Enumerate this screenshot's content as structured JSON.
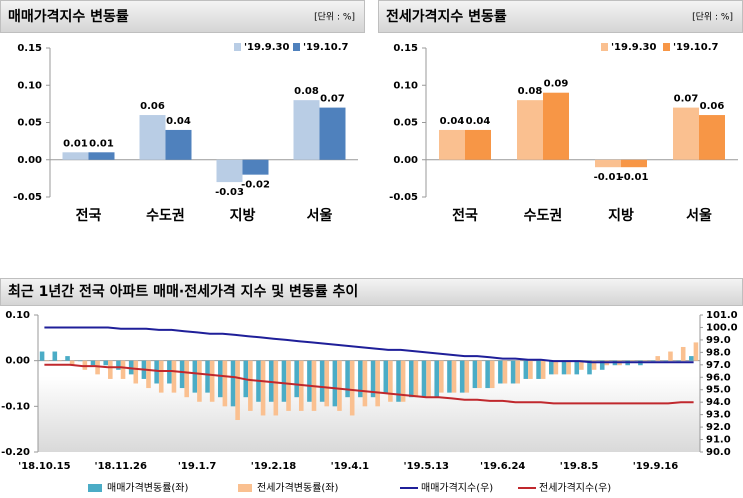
{
  "chart_data": [
    {
      "type": "bar",
      "title": "매매가격지수 변동률",
      "unit": "[단위 : %]",
      "categories": [
        "전국",
        "수도권",
        "지방",
        "서울"
      ],
      "series": [
        {
          "name": "'19.9.30",
          "color": "#b9cde5",
          "values": [
            0.01,
            0.06,
            -0.03,
            0.08
          ]
        },
        {
          "name": "'19.10.7",
          "color": "#4f81bd",
          "values": [
            0.01,
            0.04,
            -0.02,
            0.07
          ]
        }
      ],
      "ylim": [
        -0.05,
        0.15
      ],
      "yticks": [
        -0.05,
        {
          "value": 0,
          "label": "0.00"
        },
        0.05,
        {
          "value": 0.1,
          "label": "0.10"
        },
        0.15
      ],
      "legend": "top-right"
    },
    {
      "type": "bar",
      "title": "전세가격지수 변동률",
      "unit": "[단위 : %]",
      "categories": [
        "전국",
        "수도권",
        "지방",
        "서울"
      ],
      "series": [
        {
          "name": "'19.9.30",
          "color": "#fac090",
          "values": [
            0.04,
            0.08,
            -0.01,
            0.07
          ]
        },
        {
          "name": "'19.10.7",
          "color": "#f79646",
          "values": [
            0.04,
            0.09,
            -0.01,
            0.06
          ]
        }
      ],
      "ylim": [
        -0.05,
        0.15
      ],
      "yticks": [
        -0.05,
        {
          "value": 0,
          "label": "0.00"
        },
        0.05,
        {
          "value": 0.1,
          "label": "0.10"
        },
        0.15
      ],
      "legend": "top-right"
    },
    {
      "type": "combo",
      "title": "최근 1년간 전국 아파트 매매·전세가격 지수 및 변동률 추이",
      "categories": [
        "'18.10.15",
        null,
        null,
        null,
        null,
        null,
        "'18.11.26",
        null,
        null,
        null,
        null,
        null,
        "'19.1.7",
        null,
        null,
        null,
        null,
        null,
        "'19.2.18",
        null,
        null,
        null,
        null,
        null,
        "'19.4.1",
        null,
        null,
        null,
        null,
        null,
        "'19.5.13",
        null,
        null,
        null,
        null,
        null,
        "'19.6.24",
        null,
        null,
        null,
        null,
        null,
        "'19.8.5",
        null,
        null,
        null,
        null,
        null,
        "'19.9.16",
        null,
        null,
        null
      ],
      "series": [
        {
          "name": "매매가격변동률(좌)",
          "type": "bar",
          "color": "#4bacc6",
          "values": [
            0.02,
            0.02,
            0.01,
            0.0,
            -0.01,
            -0.01,
            -0.02,
            -0.03,
            -0.04,
            -0.05,
            -0.05,
            -0.06,
            -0.07,
            -0.07,
            -0.08,
            -0.1,
            -0.08,
            -0.09,
            -0.09,
            -0.09,
            -0.08,
            -0.09,
            -0.09,
            -0.1,
            -0.08,
            -0.08,
            -0.08,
            -0.07,
            -0.09,
            -0.08,
            -0.08,
            -0.08,
            -0.07,
            -0.07,
            -0.06,
            -0.06,
            -0.05,
            -0.05,
            -0.04,
            -0.04,
            -0.03,
            -0.03,
            -0.03,
            -0.03,
            -0.02,
            -0.01,
            -0.01,
            -0.01,
            0.0,
            0.0,
            0.0,
            0.01
          ]
        },
        {
          "name": "전세가격변동률(좌)",
          "type": "bar",
          "color": "#fac090",
          "values": [
            0.0,
            0.0,
            -0.01,
            -0.02,
            -0.03,
            -0.04,
            -0.04,
            -0.05,
            -0.06,
            -0.07,
            -0.07,
            -0.08,
            -0.09,
            -0.09,
            -0.1,
            -0.13,
            -0.11,
            -0.12,
            -0.12,
            -0.11,
            -0.11,
            -0.11,
            -0.1,
            -0.11,
            -0.12,
            -0.1,
            -0.1,
            -0.09,
            -0.09,
            -0.08,
            -0.08,
            -0.07,
            -0.07,
            -0.07,
            -0.06,
            -0.06,
            -0.05,
            -0.05,
            -0.04,
            -0.04,
            -0.03,
            -0.03,
            -0.02,
            -0.02,
            -0.01,
            -0.01,
            0.0,
            0.0,
            0.01,
            0.02,
            0.03,
            0.04
          ]
        },
        {
          "name": "매매가격지수(우)",
          "type": "line",
          "axis": "y2",
          "color": "#1f1f99",
          "values": [
            100.0,
            100.0,
            100.0,
            100.0,
            100.0,
            100.0,
            99.9,
            99.9,
            99.9,
            99.8,
            99.8,
            99.7,
            99.6,
            99.5,
            99.5,
            99.4,
            99.3,
            99.2,
            99.1,
            99.0,
            98.9,
            98.8,
            98.7,
            98.6,
            98.5,
            98.4,
            98.3,
            98.2,
            98.2,
            98.1,
            98.0,
            97.9,
            97.8,
            97.7,
            97.7,
            97.6,
            97.5,
            97.5,
            97.4,
            97.4,
            97.3,
            97.3,
            97.3,
            97.2,
            97.2,
            97.2,
            97.2,
            97.2,
            97.2,
            97.2,
            97.2,
            97.2
          ]
        },
        {
          "name": "전세가격지수(우)",
          "type": "line",
          "axis": "y2",
          "color": "#c0282d",
          "values": [
            97.0,
            97.0,
            97.0,
            96.9,
            96.9,
            96.8,
            96.8,
            96.7,
            96.6,
            96.5,
            96.5,
            96.4,
            96.3,
            96.2,
            96.1,
            96.0,
            95.8,
            95.7,
            95.6,
            95.5,
            95.4,
            95.3,
            95.2,
            95.1,
            95.0,
            94.9,
            94.8,
            94.7,
            94.6,
            94.5,
            94.4,
            94.4,
            94.3,
            94.2,
            94.2,
            94.1,
            94.1,
            94.0,
            94.0,
            94.0,
            93.9,
            93.9,
            93.9,
            93.9,
            93.9,
            93.9,
            93.9,
            93.9,
            93.9,
            93.9,
            94.0,
            94.0
          ]
        }
      ],
      "ylim": [
        -0.2,
        0.1
      ],
      "yticks": [
        {
          "value": -0.2,
          "label": "-0.20"
        },
        {
          "value": -0.1,
          "label": "-0.10"
        },
        {
          "value": 0,
          "label": "0.00"
        },
        {
          "value": 0.1,
          "label": "0.10"
        }
      ],
      "y2lim": [
        90,
        101
      ],
      "y2ticks": [
        {
          "value": 90,
          "label": "90.0"
        },
        {
          "value": 91,
          "label": "91.0"
        },
        {
          "value": 92,
          "label": "92.0"
        },
        {
          "value": 93,
          "label": "93.0"
        },
        {
          "value": 94,
          "label": "94.0"
        },
        {
          "value": 95,
          "label": "95.0"
        },
        {
          "value": 96,
          "label": "96.0"
        },
        {
          "value": 97,
          "label": "97.0"
        },
        {
          "value": 98,
          "label": "98.0"
        },
        {
          "value": 99,
          "label": "99.0"
        },
        {
          "value": 100,
          "label": "100.0"
        },
        {
          "value": 101,
          "label": "101.0"
        }
      ],
      "legend": "bottom"
    }
  ]
}
